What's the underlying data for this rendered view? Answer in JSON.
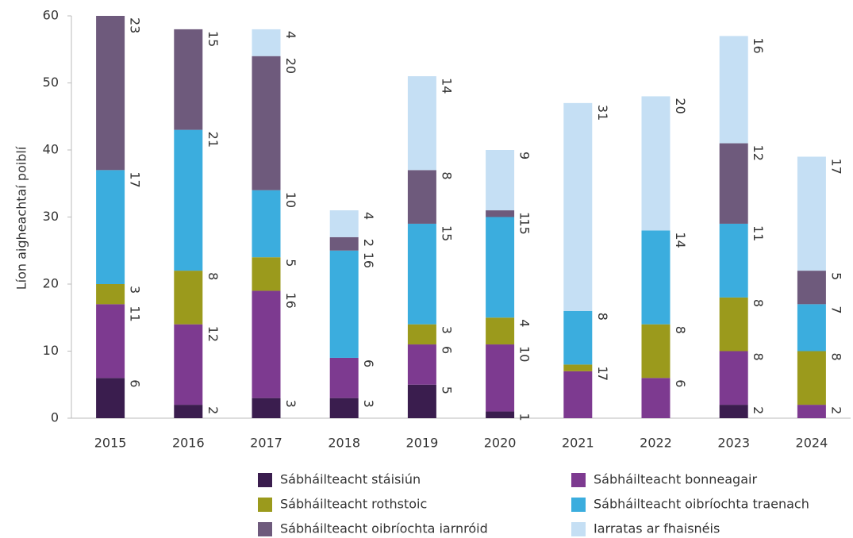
{
  "chart_data": {
    "type": "stacked_bar",
    "ylabel": "Líon aigheachtaí poiblí",
    "categories": [
      "2015",
      "2016",
      "2017",
      "2018",
      "2019",
      "2020",
      "2021",
      "2022",
      "2023",
      "2024"
    ],
    "series": [
      {
        "name": "Sábháilteacht stáisiún",
        "color": "#3a1d4e",
        "values": [
          6,
          2,
          3,
          3,
          5,
          1,
          null,
          null,
          2,
          null
        ]
      },
      {
        "name": "Sábháilteacht bonneagair",
        "color": "#7d3a90",
        "values": [
          11,
          12,
          16,
          6,
          6,
          10,
          7,
          6,
          8,
          2
        ]
      },
      {
        "name": "Sábháilteacht rothstoic",
        "color": "#9b9a1c",
        "values": [
          3,
          8,
          5,
          null,
          3,
          4,
          1,
          8,
          8,
          8
        ]
      },
      {
        "name": "Sábháilteacht oibríochta traenach",
        "color": "#3badde",
        "values": [
          17,
          21,
          10,
          16,
          15,
          15,
          8,
          14,
          11,
          7
        ]
      },
      {
        "name": "Sábháilteacht oibríochta iarnróid",
        "color": "#6e5a7c",
        "values": [
          23,
          15,
          20,
          2,
          8,
          1,
          null,
          null,
          12,
          5
        ]
      },
      {
        "name": "Iarratas ar fhaisnéis",
        "color": "#c5dff4",
        "values": [
          null,
          null,
          4,
          4,
          14,
          9,
          31,
          20,
          16,
          17
        ]
      }
    ],
    "ylim": [
      0,
      60
    ],
    "yticks": [
      0,
      10,
      20,
      30,
      40,
      50,
      60
    ],
    "grid": false,
    "legend": "bottom"
  }
}
